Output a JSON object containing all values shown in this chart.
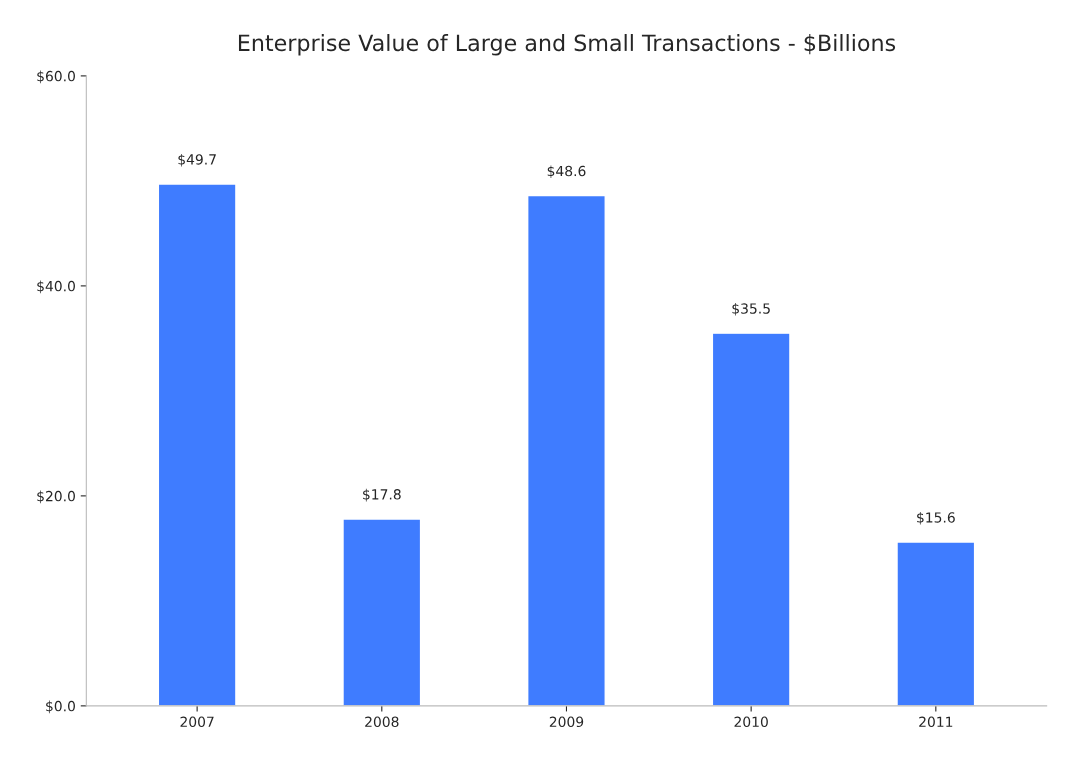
{
  "chart_data": {
    "type": "bar",
    "title": "Enterprise Value of Large and Small Transactions - $Billions",
    "categories": [
      "2007",
      "2008",
      "2009",
      "2010",
      "2011"
    ],
    "values": [
      49.7,
      17.8,
      48.6,
      35.5,
      15.6
    ],
    "value_labels": [
      "$49.7",
      "$17.8",
      "$48.6",
      "$35.5",
      "$15.6"
    ],
    "color": "#3f7cff",
    "ylim": [
      0,
      60
    ],
    "yticks": [
      {
        "value": 0,
        "label": "$0.0"
      },
      {
        "value": 20,
        "label": "$20.0"
      },
      {
        "value": 40,
        "label": "$40.0"
      },
      {
        "value": 60,
        "label": "$60.0"
      }
    ],
    "grid": false
  }
}
